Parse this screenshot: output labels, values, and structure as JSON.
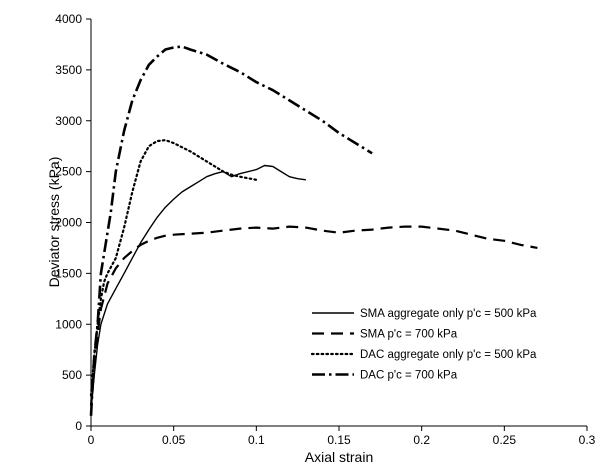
{
  "chart_data": {
    "type": "line",
    "title": "",
    "xlabel": "Axial strain",
    "ylabel": "Deviator stress (kPa)",
    "xlim": [
      0,
      0.3
    ],
    "ylim": [
      0,
      4000
    ],
    "x_ticks": [
      0,
      0.05,
      0.1,
      0.15,
      0.2,
      0.25,
      0.3
    ],
    "x_tick_labels": [
      "0",
      "0.05",
      "0.1",
      "0.15",
      "0.2",
      "0.25",
      "0.3"
    ],
    "y_ticks": [
      0,
      500,
      1000,
      1500,
      2000,
      2500,
      3000,
      3500,
      4000
    ],
    "y_tick_labels": [
      "0",
      "500",
      "1000",
      "1500",
      "2000",
      "2500",
      "3000",
      "3500",
      "4000"
    ],
    "grid": false,
    "legend_position": "bottom-right",
    "series": [
      {
        "name": "SMA aggregate only p'c = 500 kPa",
        "style": "solid",
        "x": [
          0,
          0.002,
          0.004,
          0.006,
          0.01,
          0.015,
          0.02,
          0.025,
          0.03,
          0.035,
          0.04,
          0.045,
          0.05,
          0.055,
          0.06,
          0.065,
          0.07,
          0.075,
          0.08,
          0.085,
          0.09,
          0.1,
          0.105,
          0.11,
          0.115,
          0.12,
          0.125,
          0.13
        ],
        "y": [
          150,
          500,
          800,
          1000,
          1200,
          1350,
          1500,
          1650,
          1800,
          1930,
          2050,
          2150,
          2230,
          2300,
          2350,
          2400,
          2450,
          2480,
          2500,
          2450,
          2480,
          2520,
          2560,
          2550,
          2500,
          2450,
          2430,
          2420
        ]
      },
      {
        "name": "SMA p'c = 700 kPa",
        "style": "dashed",
        "x": [
          0,
          0.002,
          0.004,
          0.006,
          0.01,
          0.015,
          0.02,
          0.025,
          0.03,
          0.035,
          0.04,
          0.045,
          0.05,
          0.06,
          0.07,
          0.08,
          0.09,
          0.1,
          0.11,
          0.12,
          0.13,
          0.14,
          0.15,
          0.16,
          0.17,
          0.18,
          0.19,
          0.2,
          0.21,
          0.22,
          0.23,
          0.24,
          0.25,
          0.26,
          0.27
        ],
        "y": [
          200,
          600,
          900,
          1150,
          1400,
          1550,
          1650,
          1720,
          1780,
          1820,
          1850,
          1870,
          1880,
          1890,
          1900,
          1920,
          1940,
          1950,
          1940,
          1960,
          1950,
          1920,
          1900,
          1920,
          1930,
          1950,
          1960,
          1960,
          1940,
          1920,
          1880,
          1840,
          1820,
          1780,
          1750
        ]
      },
      {
        "name": "DAC aggregate only p'c = 500 kPa",
        "style": "dotted",
        "x": [
          0,
          0.002,
          0.004,
          0.006,
          0.008,
          0.01,
          0.015,
          0.02,
          0.025,
          0.03,
          0.035,
          0.04,
          0.045,
          0.05,
          0.055,
          0.06,
          0.065,
          0.07,
          0.075,
          0.08,
          0.085,
          0.09,
          0.1
        ],
        "y": [
          300,
          700,
          1000,
          1250,
          1420,
          1500,
          1650,
          1950,
          2300,
          2600,
          2750,
          2800,
          2810,
          2780,
          2740,
          2700,
          2650,
          2600,
          2550,
          2500,
          2470,
          2450,
          2420
        ]
      },
      {
        "name": "DAC p'c = 700 kPa",
        "style": "dash-dot",
        "x": [
          0,
          0.002,
          0.004,
          0.006,
          0.008,
          0.01,
          0.012,
          0.015,
          0.02,
          0.025,
          0.03,
          0.035,
          0.04,
          0.045,
          0.05,
          0.055,
          0.06,
          0.07,
          0.08,
          0.09,
          0.1,
          0.11,
          0.12,
          0.13,
          0.14,
          0.15,
          0.16,
          0.17
        ],
        "y": [
          100,
          700,
          1000,
          1500,
          1700,
          1900,
          2100,
          2500,
          2900,
          3200,
          3400,
          3550,
          3630,
          3700,
          3720,
          3730,
          3700,
          3650,
          3560,
          3480,
          3380,
          3300,
          3200,
          3100,
          3000,
          2880,
          2780,
          2680
        ]
      }
    ]
  }
}
